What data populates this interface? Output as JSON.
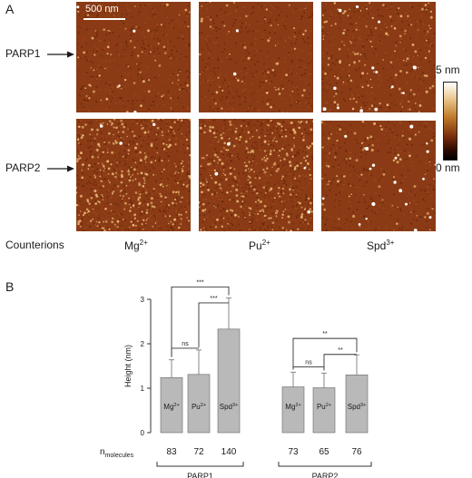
{
  "figure": {
    "panel_a_letter": "A",
    "panel_b_letter": "B",
    "scale_bar_label": "500 nm",
    "rows": [
      {
        "label": "PARP1"
      },
      {
        "label": "PARP2"
      }
    ],
    "counterions_title": "Counterions",
    "counterions": [
      {
        "base": "Mg",
        "sup": "2+"
      },
      {
        "base": "Pu",
        "sup": "2+"
      },
      {
        "base": "Spd",
        "sup": "3+"
      }
    ],
    "colorbar": {
      "max_label": "5 nm",
      "min_label": "0 nm"
    },
    "colors": {
      "afm_base": "#8a3a14",
      "afm_dark": "#4a1705",
      "bar_fill": "#b9b9b9",
      "axis": "#333333"
    }
  },
  "chart_data": {
    "type": "bar",
    "ylabel": "Height (nm)",
    "ylim": [
      0,
      3
    ],
    "yticks": [
      "0",
      "1",
      "2",
      "3"
    ],
    "bars": [
      {
        "group": "PARP1",
        "label_base": "Mg",
        "label_sup": "2+",
        "value": 1.24,
        "error": 0.4,
        "n": "83"
      },
      {
        "group": "PARP1",
        "label_base": "Pu",
        "label_sup": "2+",
        "value": 1.31,
        "error": 0.55,
        "n": "72"
      },
      {
        "group": "PARP1",
        "label_base": "Spd",
        "label_sup": "3+",
        "value": 2.33,
        "error": 0.7,
        "n": "140"
      },
      {
        "group": "PARP2",
        "label_base": "Mg",
        "label_sup": "2+",
        "value": 1.03,
        "error": 0.33,
        "n": "73"
      },
      {
        "group": "PARP2",
        "label_base": "Pu",
        "label_sup": "2+",
        "value": 1.01,
        "error": 0.33,
        "n": "65"
      },
      {
        "group": "PARP2",
        "label_base": "Spd",
        "label_sup": "3+",
        "value": 1.3,
        "error": 0.45,
        "n": "76"
      }
    ],
    "groups": [
      {
        "label": "PARP1",
        "bar_indices": [
          0,
          1,
          2
        ]
      },
      {
        "label": "PARP2",
        "bar_indices": [
          3,
          4,
          5
        ]
      }
    ],
    "n_label_base": "n",
    "n_label_sub": "molecules",
    "significance": [
      {
        "from": 0,
        "to": 1,
        "label": "ns",
        "height": 1.9
      },
      {
        "from": 1,
        "to": 2,
        "label": "***",
        "height": 2.92
      },
      {
        "from": 0,
        "to": 2,
        "label": "***",
        "height": 3.28
      },
      {
        "from": 3,
        "to": 4,
        "label": "ns",
        "height": 1.48
      },
      {
        "from": 4,
        "to": 5,
        "label": "**",
        "height": 1.76
      },
      {
        "from": 3,
        "to": 5,
        "label": "**",
        "height": 2.12
      }
    ]
  }
}
